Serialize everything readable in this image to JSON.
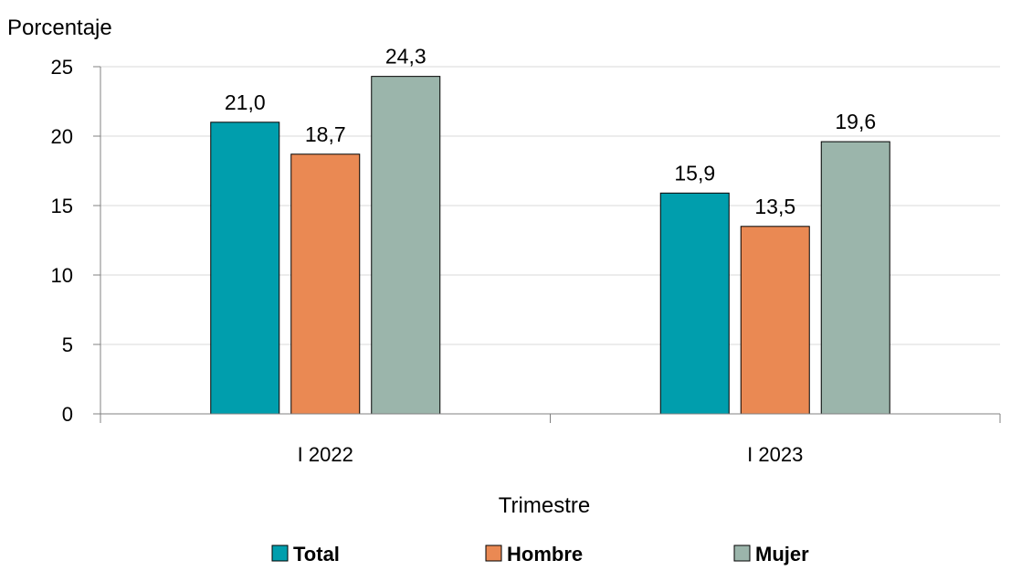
{
  "chart_data": {
    "type": "bar",
    "ylabel": "Porcentaje",
    "xlabel": "Trimestre",
    "categories": [
      "I 2022",
      "I 2023"
    ],
    "series": [
      {
        "name": "Total",
        "values": [
          21.0,
          15.9
        ],
        "labels": [
          "21,0",
          "15,9"
        ],
        "color": "#009EAD"
      },
      {
        "name": "Hombre",
        "values": [
          18.7,
          13.5
        ],
        "labels": [
          "18,7",
          "13,5"
        ],
        "color": "#EA8953"
      },
      {
        "name": "Mujer",
        "values": [
          24.3,
          19.6
        ],
        "labels": [
          "24,3",
          "19,6"
        ],
        "color": "#9BB5AB"
      }
    ],
    "ylim": [
      0,
      25
    ],
    "yticks": [
      0,
      5,
      10,
      15,
      20,
      25
    ],
    "grid": true,
    "legend": "bottom"
  }
}
